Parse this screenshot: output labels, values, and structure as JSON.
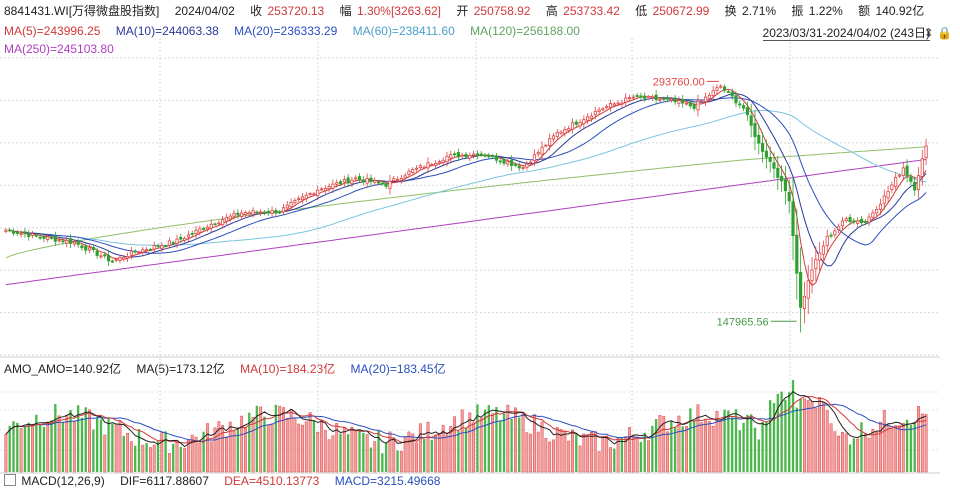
{
  "header": {
    "code": "8841431.WI[万得微盘股指数]",
    "date": "2024/04/02",
    "close_label": "收",
    "close_value": "253720.13",
    "change_label": "幅",
    "change_value": "1.30%[3263.62]",
    "open_label": "开",
    "open_value": "250758.92",
    "high_label": "高",
    "high_value": "253733.42",
    "low_label": "低",
    "low_value": "250672.99",
    "turnover_label": "换",
    "turnover_value": "2.71%",
    "amplitude_label": "振",
    "amplitude_value": "1.22%",
    "amount_label": "额",
    "amount_value": "140.92亿"
  },
  "ma_legend": {
    "ma5": "MA(5)=243996.25",
    "ma10": "MA(10)=244063.38",
    "ma20": "MA(20)=236333.29",
    "ma60": "MA(60)=238411.60",
    "ma120": "MA(120)=256188.00",
    "ma250": "MA(250)=245103.80"
  },
  "range_label": "2023/03/31-2024/04/02 (243日)",
  "range_icons": [
    "dropdown-icon",
    "lock-icon"
  ],
  "amo_legend": {
    "amo": "AMO_AMO=140.92亿",
    "ma5": "MA(5)=173.12亿",
    "ma10": "MA(10)=184.23亿",
    "ma20": "MA(20)=183.45亿"
  },
  "macd_legend": {
    "name": "MACD(12,26,9)",
    "dif": "DIF=6117.88607",
    "dea": "DEA=4510.13773",
    "macd": "MACD=3215.49668"
  },
  "colors": {
    "up": "#e04545",
    "down": "#2fa02f",
    "ma5": "#d0393a",
    "ma10": "#2a3a9a",
    "ma20": "#2a4fbf",
    "ma60": "#7cc4e0",
    "ma120": "#8fbf6a",
    "ma250": "#b040c0"
  },
  "chart_data": [
    {
      "type": "candlestick",
      "title": "8841431.WI[万得微盘股指数]",
      "x_range": [
        "2023/03/31",
        "2024/04/02"
      ],
      "n_points": 243,
      "ylim": [
        120000,
        310000
      ],
      "anchors": [
        {
          "x": 0,
          "y": 200000
        },
        {
          "x": 8,
          "y": 196000
        },
        {
          "x": 18,
          "y": 192000
        },
        {
          "x": 28,
          "y": 180000
        },
        {
          "x": 34,
          "y": 186000
        },
        {
          "x": 45,
          "y": 193000
        },
        {
          "x": 55,
          "y": 205000
        },
        {
          "x": 62,
          "y": 211000
        },
        {
          "x": 72,
          "y": 212000
        },
        {
          "x": 82,
          "y": 226000
        },
        {
          "x": 92,
          "y": 233000
        },
        {
          "x": 100,
          "y": 229000
        },
        {
          "x": 106,
          "y": 237000
        },
        {
          "x": 116,
          "y": 247000
        },
        {
          "x": 125,
          "y": 249000
        },
        {
          "x": 136,
          "y": 240000
        },
        {
          "x": 145,
          "y": 262000
        },
        {
          "x": 156,
          "y": 277000
        },
        {
          "x": 165,
          "y": 285000
        },
        {
          "x": 174,
          "y": 283000
        },
        {
          "x": 181,
          "y": 279000
        },
        {
          "x": 188,
          "y": 292000
        },
        {
          "x": 194,
          "y": 278000
        },
        {
          "x": 198,
          "y": 255000
        },
        {
          "x": 202,
          "y": 240000
        },
        {
          "x": 206,
          "y": 220000
        },
        {
          "x": 209,
          "y": 150000
        },
        {
          "x": 212,
          "y": 175000
        },
        {
          "x": 216,
          "y": 195000
        },
        {
          "x": 221,
          "y": 207000
        },
        {
          "x": 226,
          "y": 205000
        },
        {
          "x": 231,
          "y": 221000
        },
        {
          "x": 236,
          "y": 240000
        },
        {
          "x": 239,
          "y": 227000
        },
        {
          "x": 242,
          "y": 253720
        }
      ],
      "annotations": [
        {
          "text": "293760.00",
          "x": 188,
          "y": 293760
        },
        {
          "text": "147965.56",
          "x": 209,
          "y": 147965.56
        }
      ],
      "series": [
        {
          "name": "MA(5)",
          "value": 243996.25
        },
        {
          "name": "MA(10)",
          "value": 244063.38
        },
        {
          "name": "MA(20)",
          "value": 236333.29
        },
        {
          "name": "MA(60)",
          "value": 238411.6
        },
        {
          "name": "MA(120)",
          "value": 256188.0
        },
        {
          "name": "MA(250)",
          "value": 245103.8
        }
      ]
    },
    {
      "type": "bar",
      "title": "AMO",
      "unit": "亿",
      "latest": 140.92,
      "ma": {
        "MA(5)": 173.12,
        "MA(10)": 184.23,
        "MA(20)": 183.45
      }
    },
    {
      "type": "bar",
      "title": "MACD(12,26,9)",
      "DIF": 6117.88607,
      "DEA": 4510.13773,
      "MACD": 3215.49668
    }
  ]
}
